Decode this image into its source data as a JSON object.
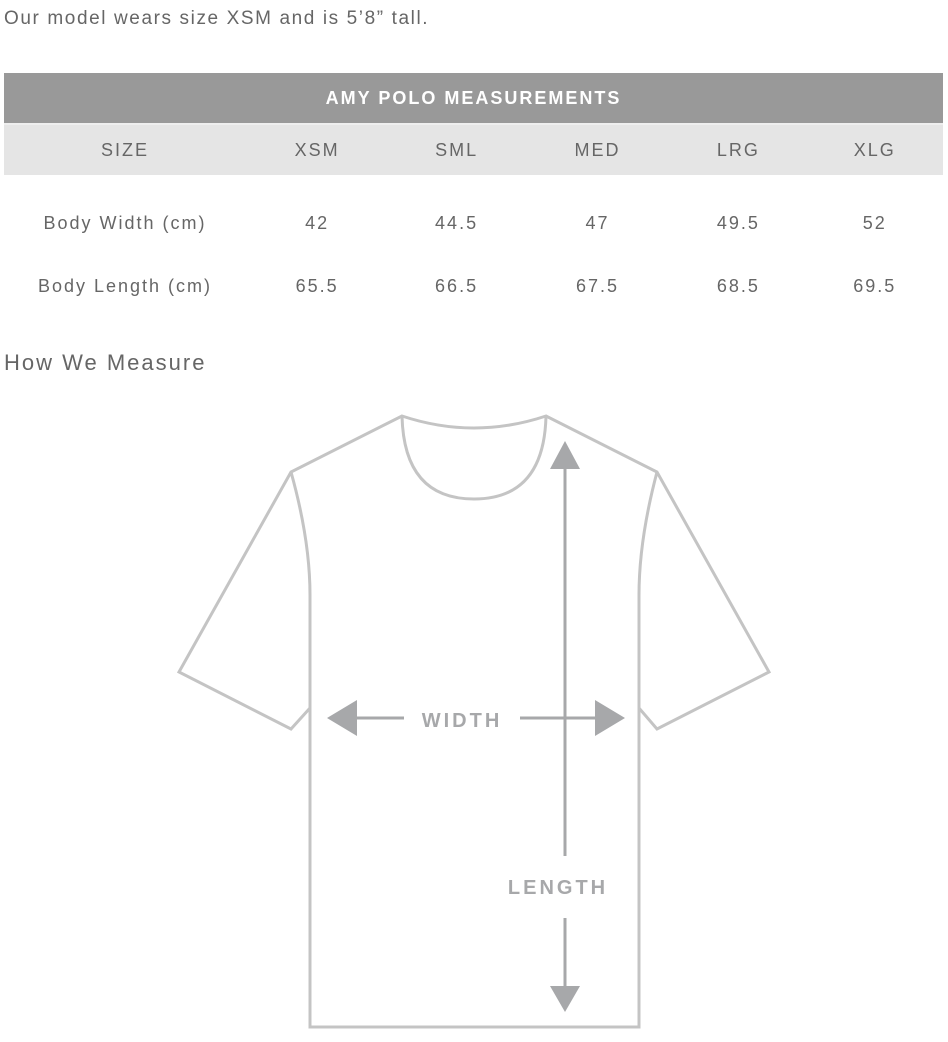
{
  "intro": "Our model wears size XSM and is 5’8” tall.",
  "table": {
    "title": "AMY POLO MEASUREMENTS",
    "headers": [
      "SIZE",
      "XSM",
      "SML",
      "MED",
      "LRG",
      "XLG"
    ],
    "rows": [
      {
        "label": "Body Width (cm)",
        "values": [
          "42",
          "44.5",
          "47",
          "49.5",
          "52"
        ]
      },
      {
        "label": "Body Length (cm)",
        "values": [
          "65.5",
          "66.5",
          "67.5",
          "68.5",
          "69.5"
        ]
      }
    ]
  },
  "how_we_measure": "How We Measure",
  "diagram": {
    "width_label": "WIDTH",
    "length_label": "LENGTH",
    "outline_color": "#c4c4c4",
    "arrow_color": "#a7a8aa"
  }
}
